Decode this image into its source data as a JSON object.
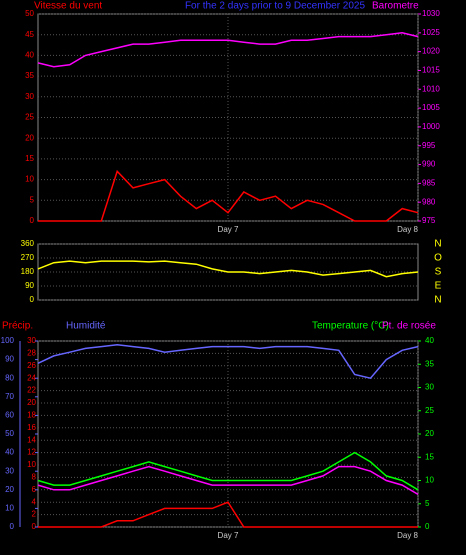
{
  "chart_data": [
    {
      "type": "line",
      "title": "For the 2 days prior to  9 December 2025",
      "x": [
        0,
        2,
        4,
        6,
        8,
        10,
        12,
        14,
        16,
        18,
        20,
        22,
        24,
        26,
        28,
        30,
        32,
        34,
        36,
        38,
        40,
        42,
        44,
        46,
        48
      ],
      "xlim": [
        0,
        48
      ],
      "xticks": [
        {
          "value": 24,
          "label": "Day 7"
        },
        {
          "value": 48,
          "label": "Day 8"
        }
      ],
      "ylim": [
        0,
        50
      ],
      "yticks": [
        0,
        5,
        10,
        15,
        20,
        25,
        30,
        35,
        40,
        45,
        50
      ],
      "y2lim": [
        975,
        1030
      ],
      "y2ticks": [
        975,
        980,
        985,
        990,
        995,
        1000,
        1005,
        1010,
        1015,
        1020,
        1025,
        1030
      ],
      "grid": true,
      "series": [
        {
          "name": "Vitesse du vent",
          "color": "#ff0000",
          "values": [
            0,
            0,
            0,
            0,
            0,
            12,
            8,
            9,
            10,
            6,
            3,
            5,
            2,
            7,
            5,
            6,
            3,
            5,
            4,
            2,
            0,
            0,
            0,
            3,
            2
          ]
        },
        {
          "name": "Barometre",
          "color": "#ff00ff",
          "axis": "y2",
          "values": [
            1017,
            1016,
            1016.5,
            1019,
            1020,
            1021,
            1022,
            1022,
            1022.5,
            1023,
            1023,
            1023,
            1023,
            1022.5,
            1022,
            1022,
            1023,
            1023,
            1023.5,
            1024,
            1024,
            1024,
            1024.5,
            1025,
            1024
          ]
        }
      ]
    },
    {
      "type": "line",
      "x": [
        0,
        2,
        4,
        6,
        8,
        10,
        12,
        14,
        16,
        18,
        20,
        22,
        24,
        26,
        28,
        30,
        32,
        34,
        36,
        38,
        40,
        42,
        44,
        46,
        48
      ],
      "xlim": [
        0,
        48
      ],
      "ylim": [
        0,
        360
      ],
      "yticks": [
        0,
        90,
        180,
        270,
        360
      ],
      "direction_labels": [
        "N",
        "E",
        "S",
        "O",
        "N"
      ],
      "grid": true,
      "series": [
        {
          "color": "#ffff00",
          "values": [
            200,
            240,
            250,
            240,
            250,
            250,
            250,
            245,
            250,
            240,
            230,
            200,
            180,
            180,
            170,
            180,
            190,
            180,
            160,
            170,
            180,
            190,
            150,
            170,
            180
          ]
        }
      ]
    },
    {
      "type": "line",
      "x": [
        0,
        2,
        4,
        6,
        8,
        10,
        12,
        14,
        16,
        18,
        20,
        22,
        24,
        26,
        28,
        30,
        32,
        34,
        36,
        38,
        40,
        42,
        44,
        46,
        48
      ],
      "xlim": [
        0,
        48
      ],
      "xticks": [
        {
          "value": 24,
          "label": "Day 7"
        },
        {
          "value": 48,
          "label": "Day 8"
        }
      ],
      "ylim": [
        0,
        30
      ],
      "yticks": [
        0,
        2,
        4,
        6,
        8,
        10,
        12,
        14,
        16,
        18,
        20,
        22,
        24,
        26,
        28,
        30
      ],
      "y2lim": [
        0,
        40
      ],
      "y2ticks": [
        0,
        5,
        10,
        15,
        20,
        25,
        30,
        35,
        40
      ],
      "y3lim": [
        0,
        100
      ],
      "y3ticks": [
        0,
        10,
        20,
        30,
        40,
        50,
        60,
        70,
        80,
        90,
        100
      ],
      "grid": true,
      "series": [
        {
          "name": "Précip.",
          "color": "#ff0000",
          "values": [
            0,
            0,
            0,
            0,
            0,
            1,
            1,
            2,
            3,
            3,
            3,
            3,
            4,
            0,
            0,
            0,
            0,
            0,
            0,
            0,
            0,
            0,
            0,
            0,
            0
          ]
        },
        {
          "name": "Humidité",
          "color": "#6666ff",
          "axis": "y3",
          "values": [
            88,
            92,
            94,
            96,
            97,
            98,
            97,
            96,
            94,
            95,
            96,
            97,
            97,
            97,
            96,
            97,
            97,
            97,
            96,
            95,
            82,
            80,
            90,
            95,
            97
          ]
        },
        {
          "name": "Temperature (°C)",
          "color": "#00ff00",
          "axis": "y2",
          "values": [
            10,
            9,
            9,
            10,
            11,
            12,
            13,
            14,
            13,
            12,
            11,
            10,
            10,
            10,
            10,
            10,
            10,
            11,
            12,
            14,
            16,
            14,
            11,
            10,
            8
          ]
        },
        {
          "name": "Pt. de rosée",
          "color": "#ff00ff",
          "axis": "y2",
          "values": [
            9,
            8,
            8,
            9,
            10,
            11,
            12,
            13,
            12,
            11,
            10,
            9,
            9,
            9,
            9,
            9,
            9,
            10,
            11,
            13,
            13,
            12,
            10,
            9,
            7
          ]
        }
      ]
    }
  ]
}
